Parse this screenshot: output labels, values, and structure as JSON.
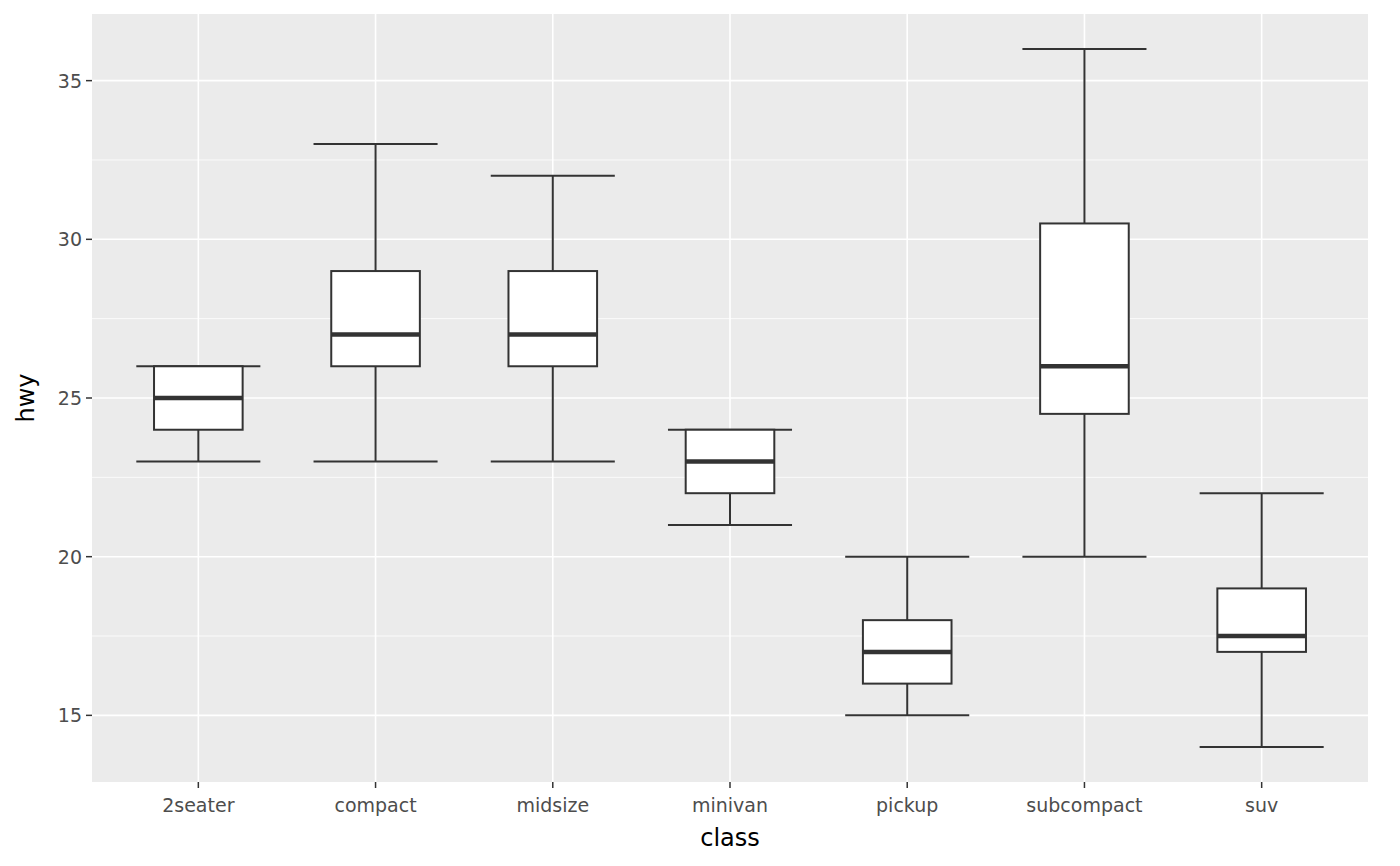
{
  "chart_data": {
    "type": "box",
    "x_label": "class",
    "y_label": "hwy",
    "categories": [
      "2seater",
      "compact",
      "midsize",
      "minivan",
      "pickup",
      "subcompact",
      "suv"
    ],
    "min": [
      23,
      23,
      23,
      21,
      15,
      20,
      14
    ],
    "q1": [
      24,
      26,
      26,
      22,
      16,
      24.5,
      17
    ],
    "median": [
      25,
      27,
      27,
      23,
      17,
      26,
      17.5
    ],
    "q3": [
      26,
      29,
      29,
      24,
      18,
      30.5,
      19
    ],
    "max": [
      26,
      33,
      32,
      24,
      20,
      36,
      22
    ],
    "ylim": [
      12.9,
      37.1
    ],
    "yticks": [
      15,
      20,
      25,
      30,
      35
    ],
    "grid": true
  }
}
